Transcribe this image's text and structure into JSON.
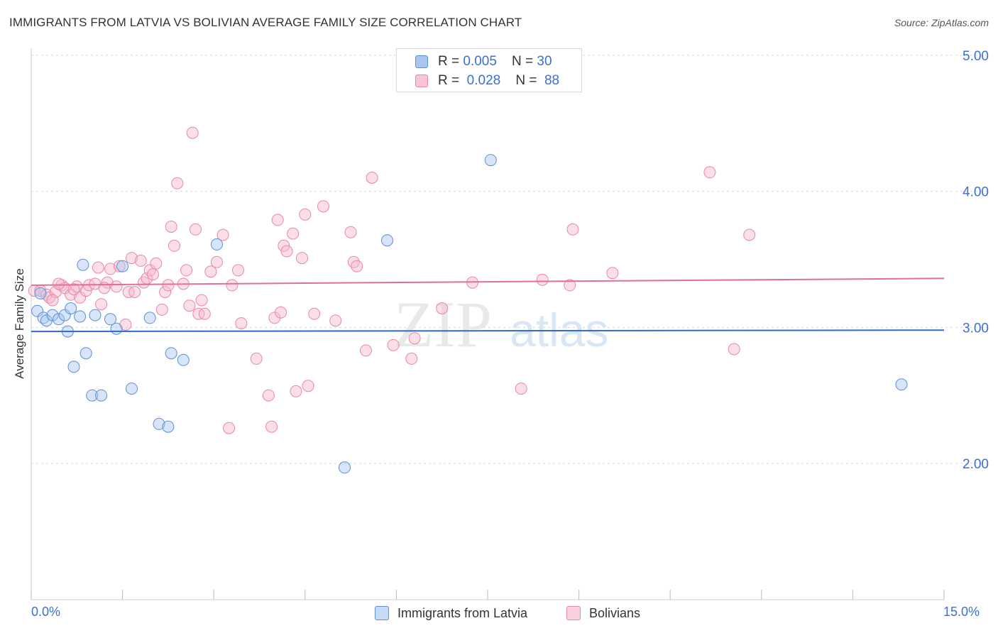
{
  "title": "IMMIGRANTS FROM LATVIA VS BOLIVIAN AVERAGE FAMILY SIZE CORRELATION CHART",
  "source": "Source: ZipAtlas.com",
  "watermark": {
    "zip": "ZIP",
    "atlas": "atlas"
  },
  "legend": {
    "rows": [
      {
        "r_label": "R = ",
        "r_value": "0.005",
        "n_label": "N = ",
        "n_value": "30"
      },
      {
        "r_label": "R = ",
        "r_value": "0.028",
        "n_label": "N = ",
        "n_value": "88"
      }
    ]
  },
  "bottom_legend": [
    "Immigrants from Latvia",
    "Bolivians"
  ],
  "colors": {
    "latvia_fill": "#a9c6f0",
    "latvia_stroke": "#5b8fd8",
    "latvia_line": "#2f6cc8",
    "bolivia_fill": "#f7b8cc",
    "bolivia_stroke": "#e887a8",
    "bolivia_line": "#e0709a",
    "axis_text": "#3b6fd0",
    "grid": "#d6d6d6"
  },
  "chart_data": {
    "type": "scatter",
    "title": "IMMIGRANTS FROM LATVIA VS BOLIVIAN AVERAGE FAMILY SIZE CORRELATION CHART",
    "xlabel": "",
    "ylabel": "Average Family Size",
    "xlim": [
      0,
      15
    ],
    "ylim": [
      1.0,
      5.1
    ],
    "x_tick_labels": [
      "0.0%",
      "15.0%"
    ],
    "y_ticks": [
      2.0,
      3.0,
      4.0,
      5.0
    ],
    "y_tick_labels": [
      "2.00",
      "3.00",
      "4.00",
      "5.00"
    ],
    "grid": "horizontal dashed",
    "legend_position": "top-center",
    "series": [
      {
        "name": "Immigrants from Latvia",
        "r": 0.005,
        "n": 30,
        "trend": [
          [
            0,
            2.97
          ],
          [
            15,
            2.98
          ]
        ],
        "points": [
          [
            0.1,
            3.12
          ],
          [
            0.2,
            3.07
          ],
          [
            0.25,
            3.05
          ],
          [
            0.35,
            3.09
          ],
          [
            0.45,
            3.06
          ],
          [
            0.55,
            3.09
          ],
          [
            0.6,
            2.97
          ],
          [
            0.65,
            3.14
          ],
          [
            0.7,
            2.71
          ],
          [
            0.8,
            3.08
          ],
          [
            0.85,
            3.46
          ],
          [
            0.9,
            2.81
          ],
          [
            1.0,
            2.5
          ],
          [
            1.05,
            3.09
          ],
          [
            1.15,
            2.5
          ],
          [
            1.3,
            3.06
          ],
          [
            1.4,
            2.99
          ],
          [
            1.5,
            3.45
          ],
          [
            1.65,
            2.55
          ],
          [
            1.95,
            3.07
          ],
          [
            2.1,
            2.29
          ],
          [
            2.25,
            2.27
          ],
          [
            2.3,
            2.81
          ],
          [
            2.5,
            2.76
          ],
          [
            3.05,
            3.61
          ],
          [
            5.15,
            1.97
          ],
          [
            5.85,
            3.64
          ],
          [
            7.55,
            4.23
          ],
          [
            14.3,
            2.58
          ],
          [
            0.15,
            3.25
          ]
        ]
      },
      {
        "name": "Bolivians",
        "r": 0.028,
        "n": 88,
        "trend": [
          [
            0,
            3.31
          ],
          [
            15,
            3.36
          ]
        ],
        "points": [
          [
            0.05,
            3.27
          ],
          [
            0.15,
            3.27
          ],
          [
            0.25,
            3.24
          ],
          [
            0.3,
            3.22
          ],
          [
            0.4,
            3.26
          ],
          [
            0.5,
            3.31
          ],
          [
            0.55,
            3.29
          ],
          [
            0.65,
            3.24
          ],
          [
            0.75,
            3.3
          ],
          [
            0.8,
            3.22
          ],
          [
            0.9,
            3.27
          ],
          [
            0.95,
            3.31
          ],
          [
            1.05,
            3.32
          ],
          [
            1.1,
            3.44
          ],
          [
            1.15,
            3.17
          ],
          [
            1.25,
            3.33
          ],
          [
            1.3,
            3.43
          ],
          [
            1.4,
            3.3
          ],
          [
            1.45,
            3.45
          ],
          [
            1.55,
            3.02
          ],
          [
            1.6,
            3.26
          ],
          [
            1.65,
            3.51
          ],
          [
            1.7,
            3.26
          ],
          [
            1.8,
            3.49
          ],
          [
            1.85,
            3.33
          ],
          [
            1.9,
            3.36
          ],
          [
            1.95,
            3.42
          ],
          [
            2.0,
            3.39
          ],
          [
            2.05,
            3.47
          ],
          [
            2.15,
            3.13
          ],
          [
            2.2,
            3.26
          ],
          [
            2.25,
            3.31
          ],
          [
            2.3,
            3.74
          ],
          [
            2.35,
            3.6
          ],
          [
            2.4,
            4.06
          ],
          [
            2.5,
            3.32
          ],
          [
            2.55,
            3.42
          ],
          [
            2.6,
            3.16
          ],
          [
            2.65,
            4.43
          ],
          [
            2.7,
            3.72
          ],
          [
            2.75,
            3.1
          ],
          [
            2.8,
            3.2
          ],
          [
            2.85,
            3.1
          ],
          [
            2.95,
            3.41
          ],
          [
            3.05,
            3.48
          ],
          [
            3.15,
            3.68
          ],
          [
            3.3,
            3.31
          ],
          [
            3.4,
            3.42
          ],
          [
            3.45,
            3.03
          ],
          [
            3.7,
            2.77
          ],
          [
            3.9,
            2.5
          ],
          [
            3.95,
            2.27
          ],
          [
            4.0,
            3.07
          ],
          [
            4.05,
            3.79
          ],
          [
            4.1,
            3.11
          ],
          [
            4.15,
            3.6
          ],
          [
            4.2,
            3.56
          ],
          [
            4.3,
            3.69
          ],
          [
            4.35,
            2.53
          ],
          [
            4.45,
            3.51
          ],
          [
            4.5,
            3.83
          ],
          [
            4.55,
            2.57
          ],
          [
            4.65,
            3.1
          ],
          [
            4.8,
            3.89
          ],
          [
            5.0,
            3.05
          ],
          [
            5.25,
            3.7
          ],
          [
            5.3,
            3.48
          ],
          [
            5.35,
            3.45
          ],
          [
            5.5,
            2.83
          ],
          [
            5.6,
            4.1
          ],
          [
            5.95,
            2.87
          ],
          [
            6.25,
            2.77
          ],
          [
            6.3,
            2.92
          ],
          [
            6.75,
            3.14
          ],
          [
            7.25,
            3.33
          ],
          [
            8.05,
            2.55
          ],
          [
            8.4,
            3.35
          ],
          [
            8.85,
            3.31
          ],
          [
            8.9,
            3.72
          ],
          [
            9.55,
            3.4
          ],
          [
            11.15,
            4.14
          ],
          [
            11.55,
            2.84
          ],
          [
            11.8,
            3.68
          ],
          [
            0.35,
            3.2
          ],
          [
            0.7,
            3.28
          ],
          [
            1.2,
            3.29
          ],
          [
            3.25,
            2.26
          ],
          [
            0.45,
            3.32
          ]
        ]
      }
    ]
  }
}
